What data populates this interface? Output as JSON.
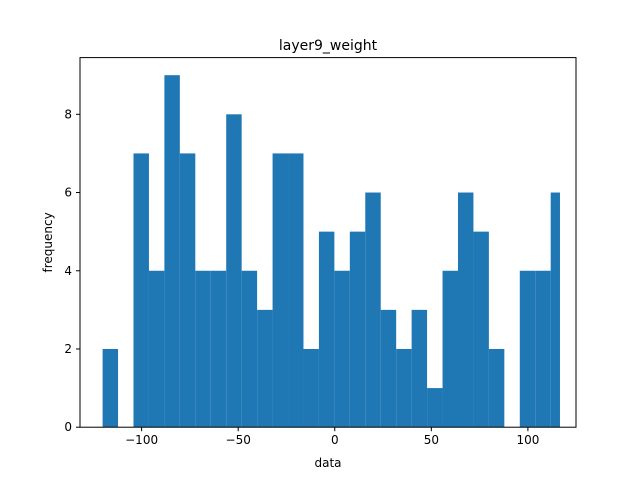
{
  "chart_data": {
    "type": "bar",
    "title": "layer9_weight",
    "xlabel": "data",
    "ylabel": "frequency",
    "xlim": [
      -131.9,
      124.9
    ],
    "ylim": [
      0,
      9.45
    ],
    "xticks": [
      -100,
      -50,
      0,
      50,
      100
    ],
    "xtick_labels": [
      "−100",
      "−50",
      "0",
      "50",
      "100"
    ],
    "yticks": [
      0,
      2,
      4,
      6,
      8
    ],
    "yticks_labels": [
      "0",
      "2",
      "4",
      "6",
      "8"
    ],
    "bin_edges": [
      -120.2,
      -112.2,
      -104.2,
      -96.2,
      -88.2,
      -80.2,
      -72.2,
      -64.2,
      -56.2,
      -48.2,
      -40.2,
      -32.2,
      -24.2,
      -16.2,
      -8.2,
      -0.2,
      7.8,
      15.8,
      23.8,
      31.8,
      39.8,
      47.8,
      55.8,
      63.8,
      71.8,
      79.8,
      87.8,
      95.8,
      103.8,
      111.8,
      116.6
    ],
    "values": [
      2,
      0,
      7,
      4,
      9,
      7,
      4,
      4,
      8,
      4,
      3,
      7,
      7,
      2,
      5,
      4,
      5,
      6,
      3,
      2,
      3,
      1,
      4,
      6,
      5,
      2,
      0,
      4,
      4,
      6
    ],
    "bar_color": "#1f77b4",
    "grid": false,
    "legend": "none"
  }
}
